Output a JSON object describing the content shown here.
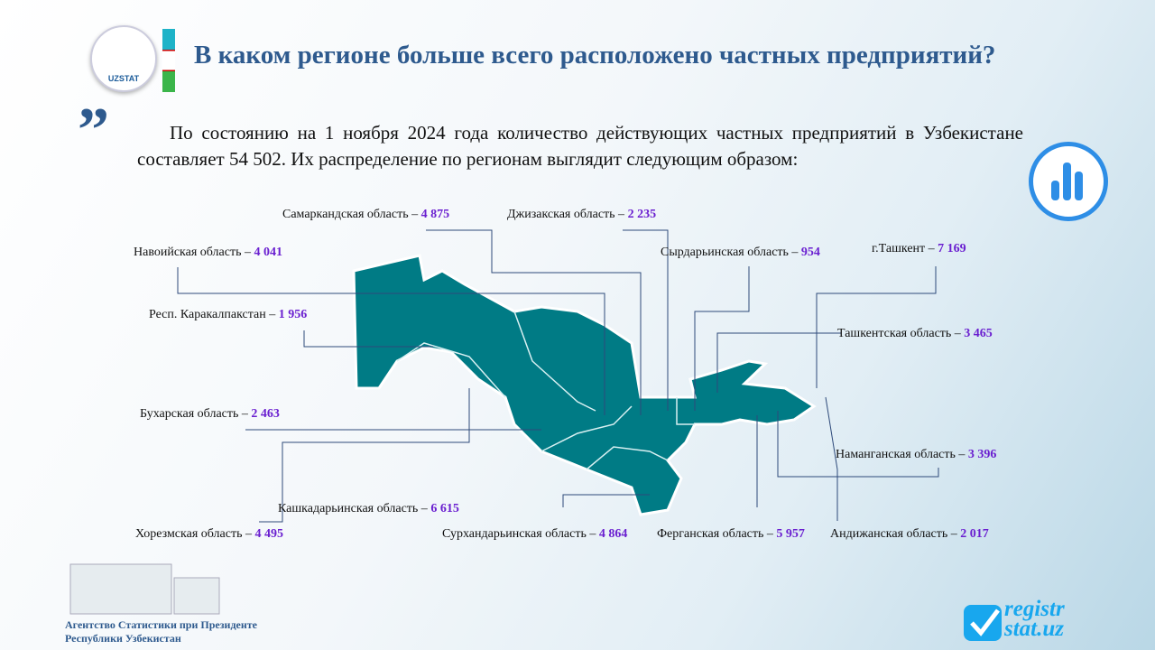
{
  "header": {
    "title": "В каком регионе больше всего расположено частных предприятий?",
    "logo_text": "UZSTAT"
  },
  "intro": "По состоянию на 1 ноября 2024 года количество действующих частных предприятий в Узбекистане составляет 54 502. Их распределение по регионам выглядит следующим образом:",
  "colors": {
    "map": "#007b85",
    "title": "#2e5a8e",
    "value": "#6a1fd0"
  },
  "regions": [
    {
      "name": "Самаркандская область – ",
      "value": "4 875"
    },
    {
      "name": "Джизакская область – ",
      "value": "2 235"
    },
    {
      "name": "Навоийская область – ",
      "value": "4 041"
    },
    {
      "name": "Сырдарьинская область – ",
      "value": "954"
    },
    {
      "name": "г.Ташкент  – ",
      "value": "7 169"
    },
    {
      "name": "Респ. Каракалпакстан – ",
      "value": "1 956"
    },
    {
      "name": "Ташкентская область – ",
      "value": "3 465"
    },
    {
      "name": "Бухарская область – ",
      "value": "2 463"
    },
    {
      "name": "Наманганская область – ",
      "value": "3 396"
    },
    {
      "name": "Кашкадарьинская область – ",
      "value": "6 615"
    },
    {
      "name": "Хорезмская область – ",
      "value": "4 495"
    },
    {
      "name": "Сурхандарьинская область – ",
      "value": "4 864"
    },
    {
      "name": "Ферганская область – ",
      "value": "5 957"
    },
    {
      "name": "Андижанская область – ",
      "value": "2 017"
    }
  ],
  "footer": {
    "line1": "Агентство Статистики при Президенте",
    "line2": "Республики Узбекистан"
  },
  "brand": {
    "line1": "registr",
    "line2": "stat.uz"
  }
}
